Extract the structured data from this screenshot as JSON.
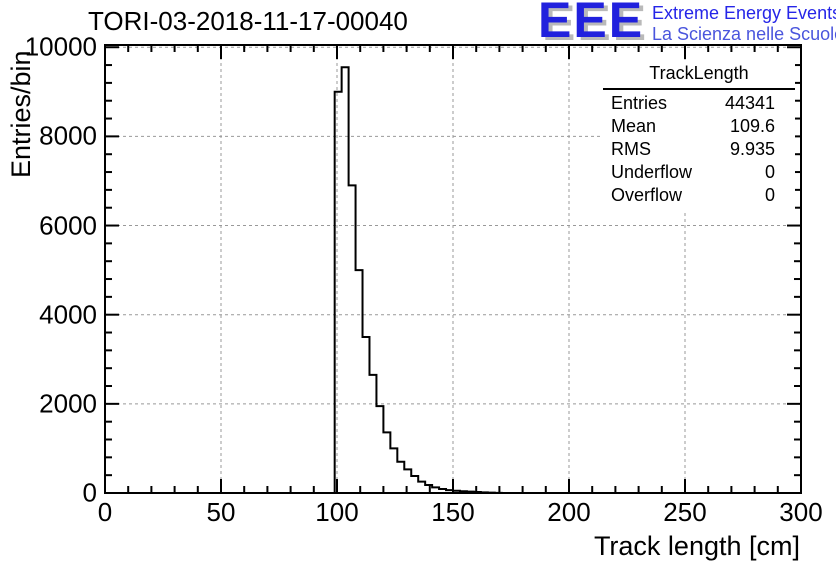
{
  "header": {
    "title": "TORI-03-2018-11-17-00040"
  },
  "logo": {
    "acronym": "EEE",
    "line1": "Extreme Energy Events",
    "line2": "La Scienza nelle Scuole",
    "acronym_color": "#2121dd",
    "shadow_color": "#b9b9b9",
    "line1_color": "#2525e8",
    "line2_color": "#4a55dd"
  },
  "stats_box": {
    "title": "TrackLength",
    "rows": [
      {
        "label": "Entries",
        "value": "44341"
      },
      {
        "label": "Mean",
        "value": "109.6"
      },
      {
        "label": "RMS",
        "value": "9.935"
      },
      {
        "label": "Underflow",
        "value": "0"
      },
      {
        "label": "Overflow",
        "value": "0"
      }
    ]
  },
  "chart_data": {
    "type": "bar",
    "subtype": "histogram-step-outline",
    "title": "TORI-03-2018-11-17-00040",
    "xlabel": "Track length [cm]",
    "ylabel": "Entries/bin",
    "xlim": [
      0,
      300
    ],
    "ylim": [
      0,
      10050
    ],
    "x_major_ticks": [
      0,
      50,
      100,
      150,
      200,
      250,
      300
    ],
    "x_minor_step": 10,
    "y_major_ticks": [
      0,
      2000,
      4000,
      6000,
      8000,
      10000
    ],
    "y_minor_step": 400,
    "grid": true,
    "grid_style": "dashed-gray",
    "legend_position": "none",
    "histogram": {
      "bin_start": 99,
      "bin_width": 3,
      "counts": [
        9000,
        9550,
        6900,
        5000,
        3500,
        2650,
        1950,
        1360,
        1000,
        700,
        530,
        380,
        255,
        180,
        125,
        90,
        65,
        50,
        40,
        30,
        22,
        15,
        8,
        3
      ]
    },
    "line_color": "#000000",
    "frame_color": "#000000",
    "grid_color": "#999999"
  }
}
